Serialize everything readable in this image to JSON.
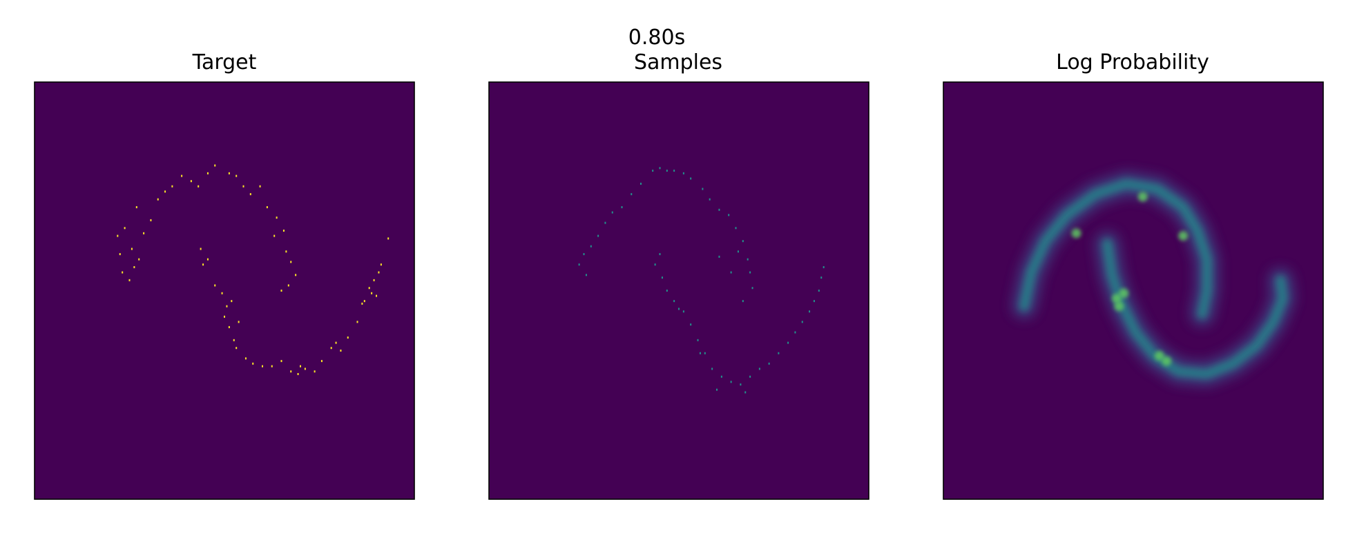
{
  "figure": {
    "suptitle": "0.80s"
  },
  "colors": {
    "background": "#440154",
    "target_points": "#fde725",
    "sample_points": "#21918c",
    "density_mid": "#3b528b",
    "density_high": "#5ec962",
    "frame": "#000000"
  },
  "chart_data": [
    {
      "type": "scatter",
      "title": "Target",
      "style": "heatmap-2d-histogram",
      "xlim": [
        -4,
        4
      ],
      "ylim": [
        -4,
        4
      ],
      "grid": false,
      "ticks": false,
      "points": [
        [
          -2.2,
          0.7
        ],
        [
          -2.15,
          0.35
        ],
        [
          -2.0,
          0.2
        ],
        [
          -1.9,
          0.45
        ],
        [
          -1.95,
          0.8
        ],
        [
          -1.8,
          0.6
        ],
        [
          -2.25,
          1.05
        ],
        [
          -2.1,
          1.2
        ],
        [
          -1.7,
          1.1
        ],
        [
          -1.55,
          1.35
        ],
        [
          -1.85,
          1.6
        ],
        [
          -1.4,
          1.75
        ],
        [
          -1.25,
          1.9
        ],
        [
          -1.1,
          2.0
        ],
        [
          -0.9,
          2.2
        ],
        [
          -0.7,
          2.1
        ],
        [
          -0.55,
          2.0
        ],
        [
          -0.35,
          2.25
        ],
        [
          -0.2,
          2.4
        ],
        [
          0.1,
          2.25
        ],
        [
          0.25,
          2.2
        ],
        [
          0.4,
          2.0
        ],
        [
          0.55,
          1.85
        ],
        [
          0.75,
          2.0
        ],
        [
          0.9,
          1.6
        ],
        [
          1.1,
          1.4
        ],
        [
          1.25,
          1.15
        ],
        [
          1.05,
          1.05
        ],
        [
          1.3,
          0.75
        ],
        [
          1.4,
          0.55
        ],
        [
          1.5,
          0.3
        ],
        [
          1.35,
          0.1
        ],
        [
          1.2,
          0.0
        ],
        [
          -0.5,
          0.8
        ],
        [
          -0.35,
          0.6
        ],
        [
          -0.2,
          0.1
        ],
        [
          -0.05,
          -0.05
        ],
        [
          0.05,
          -0.3
        ],
        [
          0.0,
          -0.5
        ],
        [
          0.1,
          -0.7
        ],
        [
          0.2,
          -0.95
        ],
        [
          0.25,
          -1.1
        ],
        [
          0.45,
          -1.3
        ],
        [
          0.6,
          -1.4
        ],
        [
          0.8,
          -1.45
        ],
        [
          1.0,
          -1.45
        ],
        [
          1.2,
          -1.35
        ],
        [
          1.4,
          -1.55
        ],
        [
          1.55,
          -1.6
        ],
        [
          1.7,
          -1.5
        ],
        [
          1.9,
          -1.55
        ],
        [
          2.05,
          -1.35
        ],
        [
          2.25,
          -1.1
        ],
        [
          2.35,
          -1.0
        ],
        [
          2.45,
          -1.15
        ],
        [
          2.6,
          -0.9
        ],
        [
          2.8,
          -0.6
        ],
        [
          2.95,
          -0.2
        ],
        [
          3.05,
          0.05
        ],
        [
          3.15,
          0.2
        ],
        [
          3.25,
          0.35
        ],
        [
          3.2,
          -0.1
        ],
        [
          3.3,
          0.5
        ],
        [
          3.45,
          1.0
        ],
        [
          3.1,
          -0.05
        ],
        [
          2.9,
          -0.25
        ],
        [
          0.3,
          -0.6
        ],
        [
          0.15,
          -0.2
        ],
        [
          -0.45,
          0.5
        ],
        [
          1.6,
          -1.45
        ]
      ]
    },
    {
      "type": "scatter",
      "title": "Samples",
      "style": "heatmap-2d-histogram",
      "xlim": [
        -4,
        4
      ],
      "ylim": [
        -4,
        4
      ],
      "grid": false,
      "ticks": false,
      "points": [
        [
          -2.1,
          0.5
        ],
        [
          -2.0,
          0.7
        ],
        [
          -1.95,
          0.3
        ],
        [
          -1.85,
          0.85
        ],
        [
          -1.7,
          1.05
        ],
        [
          -1.55,
          1.3
        ],
        [
          -1.4,
          1.5
        ],
        [
          -1.2,
          1.6
        ],
        [
          -1.0,
          1.85
        ],
        [
          -0.8,
          2.05
        ],
        [
          -0.55,
          2.3
        ],
        [
          -0.4,
          2.35
        ],
        [
          -0.25,
          2.3
        ],
        [
          -0.1,
          2.3
        ],
        [
          0.1,
          2.25
        ],
        [
          0.25,
          2.15
        ],
        [
          0.5,
          1.95
        ],
        [
          0.65,
          1.75
        ],
        [
          0.85,
          1.55
        ],
        [
          1.05,
          1.45
        ],
        [
          1.2,
          1.2
        ],
        [
          1.35,
          0.95
        ],
        [
          1.45,
          0.6
        ],
        [
          1.5,
          0.35
        ],
        [
          1.55,
          0.05
        ],
        [
          1.35,
          -0.2
        ],
        [
          1.1,
          0.35
        ],
        [
          0.85,
          0.65
        ],
        [
          -0.5,
          0.5
        ],
        [
          -0.35,
          0.25
        ],
        [
          -0.25,
          0.0
        ],
        [
          -0.1,
          -0.2
        ],
        [
          0.1,
          -0.4
        ],
        [
          0.25,
          -0.65
        ],
        [
          0.4,
          -0.95
        ],
        [
          0.55,
          -1.2
        ],
        [
          0.7,
          -1.5
        ],
        [
          0.9,
          -1.65
        ],
        [
          1.1,
          -1.75
        ],
        [
          1.3,
          -1.8
        ],
        [
          1.5,
          -1.65
        ],
        [
          1.7,
          -1.5
        ],
        [
          1.9,
          -1.4
        ],
        [
          2.1,
          -1.2
        ],
        [
          2.3,
          -1.0
        ],
        [
          2.45,
          -0.8
        ],
        [
          2.6,
          -0.6
        ],
        [
          2.75,
          -0.4
        ],
        [
          2.85,
          -0.2
        ],
        [
          2.95,
          0.0
        ],
        [
          3.0,
          0.25
        ],
        [
          3.05,
          0.45
        ],
        [
          1.4,
          -1.95
        ],
        [
          0.8,
          -1.9
        ],
        [
          0.45,
          -1.2
        ],
        [
          0.0,
          -0.35
        ],
        [
          -0.4,
          0.7
        ],
        [
          1.25,
          0.75
        ]
      ]
    },
    {
      "type": "heatmap",
      "title": "Log Probability",
      "style": "density",
      "xlim": [
        -4,
        4
      ],
      "ylim": [
        -4,
        4
      ],
      "grid": false,
      "ticks": false,
      "curves": [
        {
          "name": "upper-moon",
          "points": [
            [
              -2.3,
              -0.3
            ],
            [
              -2.15,
              0.35
            ],
            [
              -1.85,
              0.95
            ],
            [
              -1.4,
              1.45
            ],
            [
              -0.8,
              1.85
            ],
            [
              -0.15,
              2.05
            ],
            [
              0.5,
              1.95
            ],
            [
              1.05,
              1.6
            ],
            [
              1.35,
              1.15
            ],
            [
              1.55,
              0.6
            ],
            [
              1.55,
              0.0
            ],
            [
              1.45,
              -0.45
            ]
          ]
        },
        {
          "name": "lower-moon",
          "points": [
            [
              -0.55,
              0.9
            ],
            [
              -0.45,
              0.3
            ],
            [
              -0.25,
              -0.25
            ],
            [
              0.05,
              -0.8
            ],
            [
              0.45,
              -1.25
            ],
            [
              0.95,
              -1.55
            ],
            [
              1.55,
              -1.6
            ],
            [
              2.1,
              -1.4
            ],
            [
              2.6,
              -1.05
            ],
            [
              2.95,
              -0.6
            ],
            [
              3.15,
              -0.15
            ],
            [
              3.1,
              0.2
            ]
          ]
        }
      ],
      "hotspots": [
        [
          -0.35,
          -0.15
        ],
        [
          -0.3,
          -0.3
        ],
        [
          -0.2,
          -0.05
        ],
        [
          0.55,
          -1.25
        ],
        [
          0.7,
          -1.35
        ],
        [
          -1.2,
          1.1
        ],
        [
          1.05,
          1.05
        ],
        [
          0.2,
          1.8
        ]
      ]
    }
  ]
}
